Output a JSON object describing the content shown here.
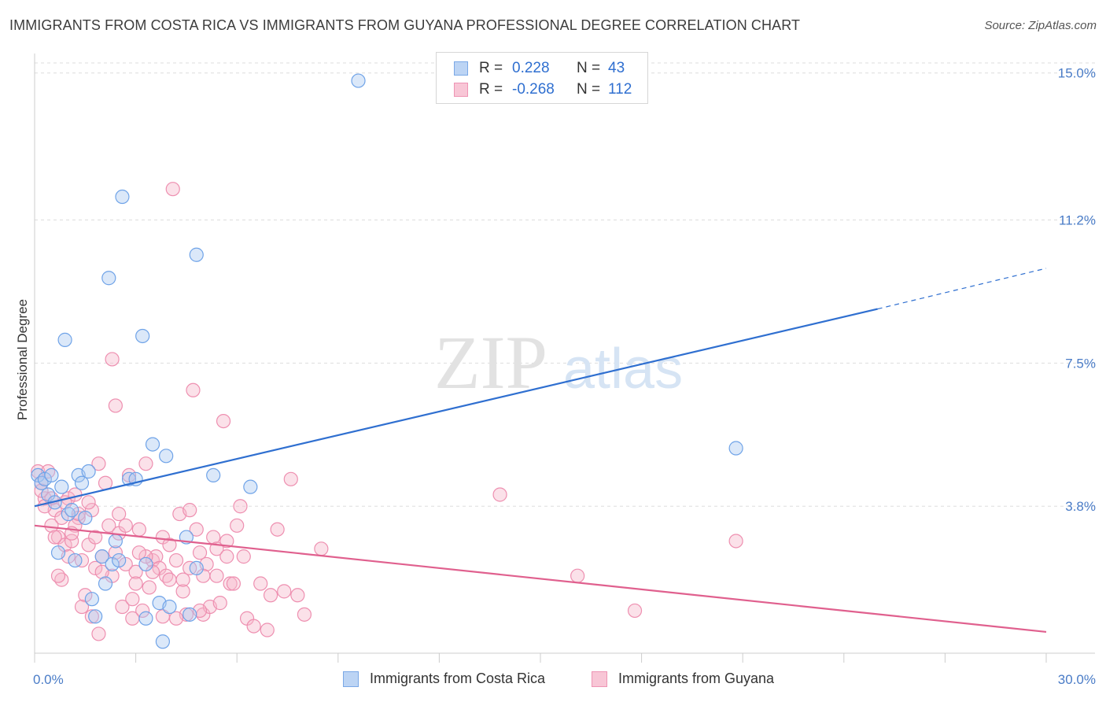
{
  "header": {
    "title": "IMMIGRANTS FROM COSTA RICA VS IMMIGRANTS FROM GUYANA PROFESSIONAL DEGREE CORRELATION CHART",
    "source": "Source: ZipAtlas.com"
  },
  "watermark": {
    "zip": "ZIP",
    "atlas": "atlas"
  },
  "legend": {
    "rows": [
      {
        "r_label": "R =",
        "r_value": "0.228",
        "n_label": "N =",
        "n_value": "43",
        "color": "#6fa3e8"
      },
      {
        "r_label": "R =",
        "r_value": "-0.268",
        "n_label": "N =",
        "n_value": "112",
        "color": "#f08aaa"
      }
    ]
  },
  "bottom_legend": {
    "series1": "Immigrants from Costa Rica",
    "series2": "Immigrants from Guyana"
  },
  "colors": {
    "blue_fill": "#a9c8f0",
    "blue_stroke": "#6fa3e8",
    "blue_line": "#2f6fd0",
    "pink_fill": "#f6b8cb",
    "pink_stroke": "#ee8fb0",
    "pink_line": "#e0608e",
    "tick": "#4a7cc7",
    "grid": "#dddddd"
  },
  "chart_data": {
    "type": "scatter",
    "title": "IMMIGRANTS FROM COSTA RICA VS IMMIGRANTS FROM GUYANA PROFESSIONAL DEGREE CORRELATION CHART",
    "xlabel": "",
    "ylabel": "Professional Degree",
    "xlim": [
      0,
      30
    ],
    "ylim": [
      0,
      15.3
    ],
    "x_tick_labels": [
      {
        "value": 0,
        "label": "0.0%"
      },
      {
        "value": 30,
        "label": "30.0%"
      }
    ],
    "y_tick_labels": [
      {
        "value": 3.8,
        "label": "3.8%"
      },
      {
        "value": 7.5,
        "label": "7.5%"
      },
      {
        "value": 11.2,
        "label": "11.2%"
      },
      {
        "value": 15.0,
        "label": "15.0%"
      }
    ],
    "y_gridlines": [
      3.8,
      7.5,
      11.2,
      15.0
    ],
    "series": [
      {
        "name": "Immigrants from Costa Rica",
        "color": "#6fa3e8",
        "trend": {
          "x0": 0,
          "y0": 3.8,
          "x1": 25.0,
          "y1": 8.9,
          "dash_to_x": 30,
          "dash_to_y": 9.95
        },
        "points": [
          [
            0.1,
            4.6
          ],
          [
            0.2,
            4.4
          ],
          [
            0.3,
            4.5
          ],
          [
            0.4,
            4.1
          ],
          [
            0.5,
            4.6
          ],
          [
            0.6,
            3.9
          ],
          [
            0.7,
            2.6
          ],
          [
            0.8,
            4.3
          ],
          [
            0.9,
            8.1
          ],
          [
            1.0,
            3.6
          ],
          [
            1.1,
            3.7
          ],
          [
            1.2,
            2.4
          ],
          [
            1.3,
            4.6
          ],
          [
            1.4,
            4.4
          ],
          [
            1.5,
            3.5
          ],
          [
            1.6,
            4.7
          ],
          [
            1.7,
            1.4
          ],
          [
            1.8,
            0.95
          ],
          [
            2.0,
            2.5
          ],
          [
            2.1,
            1.8
          ],
          [
            2.2,
            9.7
          ],
          [
            2.3,
            2.3
          ],
          [
            2.4,
            2.9
          ],
          [
            2.5,
            2.4
          ],
          [
            2.6,
            11.8
          ],
          [
            2.8,
            4.5
          ],
          [
            3.0,
            4.5
          ],
          [
            3.2,
            8.2
          ],
          [
            3.3,
            2.3
          ],
          [
            3.5,
            5.4
          ],
          [
            3.3,
            0.9
          ],
          [
            3.7,
            1.3
          ],
          [
            3.8,
            0.3
          ],
          [
            3.9,
            5.1
          ],
          [
            4.0,
            1.2
          ],
          [
            4.5,
            3.0
          ],
          [
            4.6,
            1.0
          ],
          [
            4.8,
            2.2
          ],
          [
            4.8,
            10.3
          ],
          [
            5.3,
            4.6
          ],
          [
            6.4,
            4.3
          ],
          [
            9.6,
            14.8
          ],
          [
            20.8,
            5.3
          ]
        ]
      },
      {
        "name": "Immigrants from Guyana",
        "color": "#ee8fb0",
        "trend": {
          "x0": 0,
          "y0": 3.3,
          "x1": 30,
          "y1": 0.55
        },
        "points": [
          [
            0.1,
            4.7
          ],
          [
            0.2,
            4.4
          ],
          [
            0.3,
            4.0
          ],
          [
            0.4,
            4.7
          ],
          [
            0.5,
            4.0
          ],
          [
            0.6,
            3.7
          ],
          [
            0.7,
            3.0
          ],
          [
            0.8,
            3.5
          ],
          [
            0.9,
            2.8
          ],
          [
            1.0,
            4.0
          ],
          [
            1.1,
            2.9
          ],
          [
            1.2,
            4.1
          ],
          [
            1.3,
            3.5
          ],
          [
            1.4,
            2.4
          ],
          [
            1.5,
            1.5
          ],
          [
            1.6,
            2.8
          ],
          [
            1.7,
            3.7
          ],
          [
            1.8,
            2.2
          ],
          [
            1.9,
            4.9
          ],
          [
            2.0,
            2.5
          ],
          [
            2.1,
            4.4
          ],
          [
            2.2,
            3.3
          ],
          [
            2.3,
            2.0
          ],
          [
            2.4,
            6.4
          ],
          [
            2.5,
            3.1
          ],
          [
            2.6,
            1.2
          ],
          [
            2.7,
            2.3
          ],
          [
            2.8,
            4.6
          ],
          [
            2.9,
            1.4
          ],
          [
            3.0,
            2.1
          ],
          [
            3.1,
            3.2
          ],
          [
            3.2,
            1.1
          ],
          [
            3.3,
            4.9
          ],
          [
            3.4,
            1.7
          ],
          [
            3.5,
            2.4
          ],
          [
            3.6,
            2.5
          ],
          [
            3.7,
            2.2
          ],
          [
            3.8,
            3.0
          ],
          [
            3.9,
            2.0
          ],
          [
            4.0,
            2.8
          ],
          [
            4.1,
            12.0
          ],
          [
            4.2,
            2.4
          ],
          [
            4.3,
            3.6
          ],
          [
            4.4,
            1.6
          ],
          [
            4.5,
            1.0
          ],
          [
            4.6,
            2.2
          ],
          [
            4.7,
            6.8
          ],
          [
            4.8,
            3.2
          ],
          [
            4.9,
            2.6
          ],
          [
            5.0,
            1.0
          ],
          [
            5.1,
            2.3
          ],
          [
            5.2,
            1.2
          ],
          [
            5.3,
            3.0
          ],
          [
            5.4,
            2.7
          ],
          [
            5.5,
            1.3
          ],
          [
            5.6,
            6.0
          ],
          [
            5.7,
            2.5
          ],
          [
            5.8,
            1.8
          ],
          [
            5.9,
            1.8
          ],
          [
            6.0,
            3.3
          ],
          [
            6.1,
            3.8
          ],
          [
            6.2,
            2.5
          ],
          [
            6.3,
            0.9
          ],
          [
            6.5,
            0.7
          ],
          [
            6.7,
            1.8
          ],
          [
            6.9,
            0.6
          ],
          [
            7.0,
            1.5
          ],
          [
            7.2,
            3.2
          ],
          [
            7.4,
            1.6
          ],
          [
            7.6,
            4.5
          ],
          [
            7.8,
            1.5
          ],
          [
            8.0,
            1.0
          ],
          [
            8.5,
            2.7
          ],
          [
            1.9,
            0.5
          ],
          [
            2.3,
            7.6
          ],
          [
            1.7,
            0.95
          ],
          [
            0.8,
            1.9
          ],
          [
            1.0,
            2.5
          ],
          [
            1.2,
            3.3
          ],
          [
            1.4,
            1.2
          ],
          [
            2.5,
            3.6
          ],
          [
            3.3,
            2.5
          ],
          [
            4.0,
            1.9
          ],
          [
            5.0,
            2.0
          ],
          [
            0.5,
            3.3
          ],
          [
            0.7,
            2.0
          ],
          [
            0.9,
            3.9
          ],
          [
            1.3,
            3.6
          ],
          [
            1.6,
            3.9
          ],
          [
            2.9,
            0.9
          ],
          [
            3.8,
            0.95
          ],
          [
            4.4,
            1.9
          ],
          [
            5.4,
            2.0
          ],
          [
            3.0,
            1.8
          ],
          [
            2.0,
            2.1
          ],
          [
            1.1,
            3.1
          ],
          [
            0.6,
            3.0
          ],
          [
            0.3,
            3.8
          ],
          [
            0.2,
            4.2
          ],
          [
            1.8,
            3.0
          ],
          [
            2.7,
            3.3
          ],
          [
            3.5,
            2.1
          ],
          [
            4.9,
            1.1
          ],
          [
            4.6,
            3.7
          ],
          [
            5.7,
            2.9
          ],
          [
            4.2,
            0.9
          ],
          [
            3.1,
            2.6
          ],
          [
            2.4,
            2.6
          ],
          [
            13.8,
            4.1
          ],
          [
            16.1,
            2.0
          ],
          [
            17.8,
            1.1
          ],
          [
            20.8,
            2.9
          ]
        ]
      }
    ]
  }
}
